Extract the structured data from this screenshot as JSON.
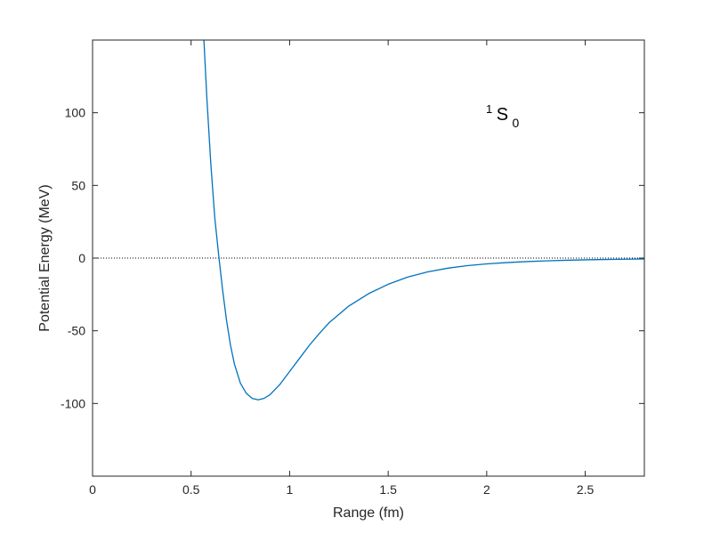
{
  "chart_data": {
    "type": "line",
    "title": "",
    "xlabel": "Range (fm)",
    "ylabel": "Potential Energy (MeV)",
    "xlim": [
      0,
      2.8
    ],
    "ylim": [
      -150,
      150
    ],
    "x_ticks": [
      0,
      0.5,
      1,
      1.5,
      2,
      2.5
    ],
    "x_tick_labels": [
      "0",
      "0.5",
      "1",
      "1.5",
      "2",
      "2.5"
    ],
    "y_ticks": [
      -100,
      -50,
      0,
      50,
      100
    ],
    "y_tick_labels": [
      "-100",
      "-50",
      "0",
      "50",
      "100"
    ],
    "grid": false,
    "legend": "none",
    "annotation": {
      "sup": "1",
      "main": "S",
      "sub": "0"
    },
    "reference_line": {
      "y": 0,
      "style": "dotted",
      "color": "#000000"
    },
    "series": [
      {
        "color": "#0072BD",
        "x": [
          0.565,
          0.58,
          0.6,
          0.62,
          0.64,
          0.66,
          0.68,
          0.7,
          0.72,
          0.75,
          0.78,
          0.81,
          0.84,
          0.87,
          0.9,
          0.95,
          1.0,
          1.05,
          1.1,
          1.15,
          1.2,
          1.3,
          1.4,
          1.5,
          1.6,
          1.7,
          1.8,
          1.9,
          2.0,
          2.1,
          2.2,
          2.3,
          2.4,
          2.5,
          2.6,
          2.7,
          2.8
        ],
        "y": [
          150,
          110,
          65,
          28,
          2,
          -22,
          -43,
          -60,
          -73,
          -86,
          -93,
          -96.5,
          -97.5,
          -96.5,
          -94,
          -87,
          -78,
          -69,
          -60,
          -52,
          -44.5,
          -33,
          -24.5,
          -18,
          -13,
          -9.5,
          -7,
          -5.2,
          -4,
          -3.1,
          -2.4,
          -1.9,
          -1.5,
          -1.2,
          -0.95,
          -0.75,
          -0.6
        ]
      }
    ]
  }
}
